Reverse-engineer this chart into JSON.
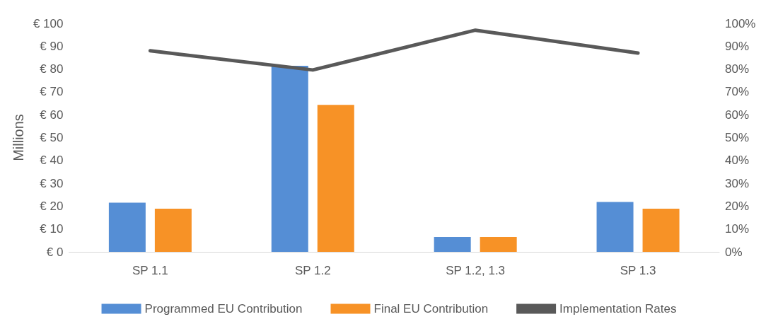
{
  "chart_data": {
    "type": "bar",
    "ylabel": "Millions",
    "categories": [
      "SP 1.1",
      "SP 1.2",
      "SP 1.2, 1.3",
      "SP 1.3"
    ],
    "series": [
      {
        "name": "Programmed EU Contribution",
        "color": "#558ed5",
        "values": [
          21.5,
          81.4,
          6.5,
          21.8
        ]
      },
      {
        "name": "Final EU Contribution",
        "color": "#f79226",
        "values": [
          18.9,
          64.3,
          6.5,
          18.9
        ]
      },
      {
        "name": "Implementation Rates",
        "type": "line",
        "axis": "y2",
        "color": "#595959",
        "values": [
          88,
          79.6,
          97,
          87
        ]
      }
    ],
    "ylim": [
      0,
      100
    ],
    "yticks": [
      {
        "value": 0,
        "label": "€ 0"
      },
      {
        "value": 10,
        "label": "€ 10"
      },
      {
        "value": 20,
        "label": "€ 20"
      },
      {
        "value": 30,
        "label": "€ 30"
      },
      {
        "value": 40,
        "label": "€ 40"
      },
      {
        "value": 50,
        "label": "€ 50"
      },
      {
        "value": 60,
        "label": "€ 60"
      },
      {
        "value": 70,
        "label": "€ 70"
      },
      {
        "value": 80,
        "label": "€ 80"
      },
      {
        "value": 90,
        "label": "€ 90"
      },
      {
        "value": 100,
        "label": "€ 100"
      }
    ],
    "y2lim": [
      0,
      100
    ],
    "y2ticks": [
      {
        "value": 0,
        "label": "0%"
      },
      {
        "value": 10,
        "label": "10%"
      },
      {
        "value": 20,
        "label": "20%"
      },
      {
        "value": 30,
        "label": "30%"
      },
      {
        "value": 40,
        "label": "40%"
      },
      {
        "value": 50,
        "label": "50%"
      },
      {
        "value": 60,
        "label": "60%"
      },
      {
        "value": 70,
        "label": "70%"
      },
      {
        "value": 80,
        "label": "80%"
      },
      {
        "value": 90,
        "label": "90%"
      },
      {
        "value": 100,
        "label": "100%"
      }
    ],
    "legend": "bottom",
    "marker": "none",
    "grid": false
  }
}
